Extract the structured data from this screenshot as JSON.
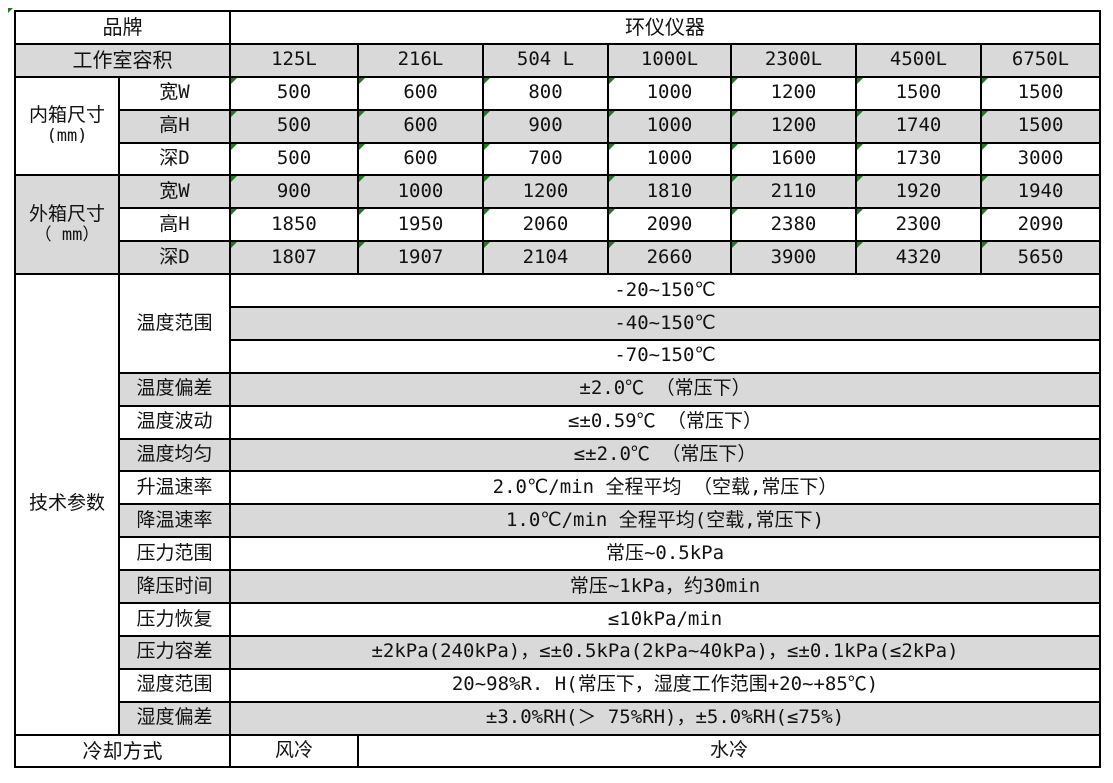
{
  "colors": {
    "shade": "#d9d9d9",
    "border": "#000000",
    "indicator_green": "#217a21",
    "text": "#111111"
  },
  "t": {
    "brand": {
      "label": "品牌",
      "value": "环仪仪器"
    },
    "volume": {
      "label": "工作室容积",
      "items": [
        "125L",
        "216L",
        "504 L",
        "1000L",
        "2300L",
        "4500L",
        "6750L"
      ]
    },
    "inner": {
      "label": "内箱尺寸",
      "unit": "(mm)",
      "rows": [
        {
          "label": "宽W",
          "values": [
            "500",
            "600",
            "800",
            "1000",
            "1200",
            "1500",
            "1500"
          ]
        },
        {
          "label": "高H",
          "values": [
            "500",
            "600",
            "900",
            "1000",
            "1200",
            "1740",
            "1500"
          ]
        },
        {
          "label": "深D",
          "values": [
            "500",
            "600",
            "700",
            "1000",
            "1600",
            "1730",
            "3000"
          ]
        }
      ]
    },
    "outer": {
      "label": "外箱尺寸",
      "unit": "（ mm）",
      "rows": [
        {
          "label": "宽W",
          "values": [
            "900",
            "1000",
            "1200",
            "1810",
            "2110",
            "1920",
            "1940"
          ]
        },
        {
          "label": "高H",
          "values": [
            "1850",
            "1950",
            "2060",
            "2090",
            "2380",
            "2300",
            "2090"
          ]
        },
        {
          "label": "深D",
          "values": [
            "1807",
            "1907",
            "2104",
            "2660",
            "3900",
            "4320",
            "5650"
          ]
        }
      ]
    },
    "tech": {
      "label": "技术参数",
      "temp_range": {
        "label": "温度范围",
        "values": [
          "-20~150℃",
          "-40~150℃",
          "-70~150℃"
        ]
      },
      "params": [
        {
          "label": "温度偏差",
          "value": "±2.0℃ （常压下）"
        },
        {
          "label": "温度波动",
          "value": "≤±0.59℃ （常压下）"
        },
        {
          "label": "温度均匀",
          "value": "≤±2.0℃ （常压下）"
        },
        {
          "label": "升温速率",
          "value": "2.0℃/min 全程平均 （空载,常压下）"
        },
        {
          "label": "降温速率",
          "value": "1.0℃/min 全程平均(空载,常压下)"
        },
        {
          "label": "压力范围",
          "value": "常压~0.5kPa"
        },
        {
          "label": "降压时间",
          "value": "常压~1kPa，约30min"
        },
        {
          "label": "压力恢复",
          "value": "≤10kPa/min"
        },
        {
          "label": "压力容差",
          "value": "±2kPa(240kPa)，≤±0.5kPa(2kPa~40kPa)，≤±0.1kPa(≤2kPa)"
        },
        {
          "label": "湿度范围",
          "value": "20~98%R. H(常压下，湿度工作范围+20~+85℃)"
        },
        {
          "label": "湿度偏差",
          "value": "±3.0%RH(＞ 75%RH)，±5.0%RH(≤75%)"
        }
      ]
    },
    "cooling": {
      "label": "冷却方式",
      "air": "风冷",
      "water": "水冷"
    }
  }
}
